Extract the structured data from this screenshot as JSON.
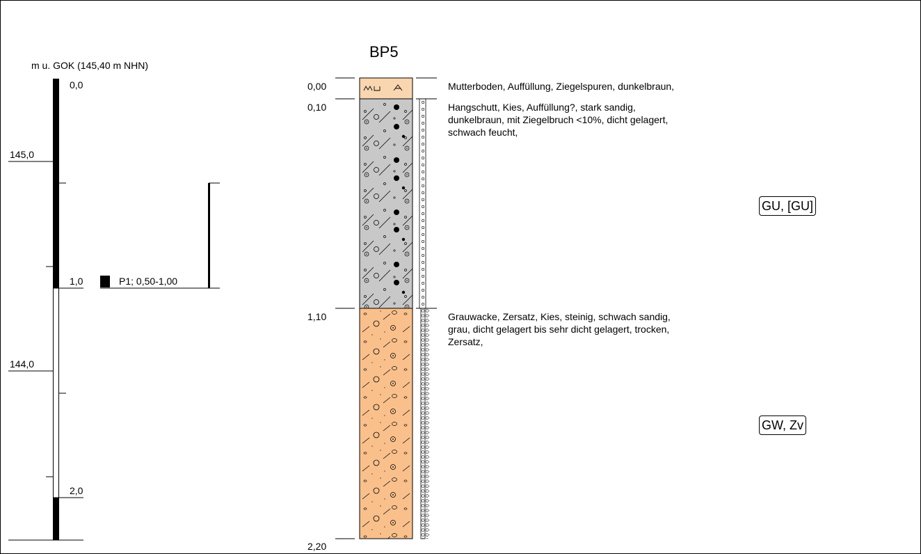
{
  "title": "BP5",
  "depth_axis_label": "m u. GOK (145,40 m NHN)",
  "depth_ticks": [
    "0,0",
    "1,0",
    "2,0"
  ],
  "elevation_ticks": [
    "145,0",
    "144,0"
  ],
  "sample": {
    "label": "P1; 0,50-1,00",
    "from_m": 0.5,
    "to_m": 1.0
  },
  "profile": {
    "surface_elevation_m": 145.4,
    "total_depth_m": 2.2,
    "layer_boundaries": [
      "0,00",
      "0,10",
      "1,10",
      "2,20"
    ],
    "layers": [
      {
        "top_m": 0.0,
        "bottom_m": 0.1,
        "color": "#f9d6b0",
        "description": "Mutterboden, Auffüllung, Ziegelspuren, dunkelbraun,",
        "classification": ""
      },
      {
        "top_m": 0.1,
        "bottom_m": 1.1,
        "color": "#c8c8c8",
        "description": "Hangschutt, Kies, Auffüllung?, stark sandig,\ndunkelbraun, mit Ziegelbruch <10%, dicht gelagert,\nschwach feucht,",
        "classification": "GU, [GU]"
      },
      {
        "top_m": 1.1,
        "bottom_m": 2.2,
        "color": "#f9c08c",
        "description": "Grauwacke, Zersatz, Kies, steinig, schwach sandig,\ngrau, dicht gelagert bis sehr dicht gelagert, trocken,\nZersatz,",
        "classification": "GW, Zv"
      }
    ]
  }
}
